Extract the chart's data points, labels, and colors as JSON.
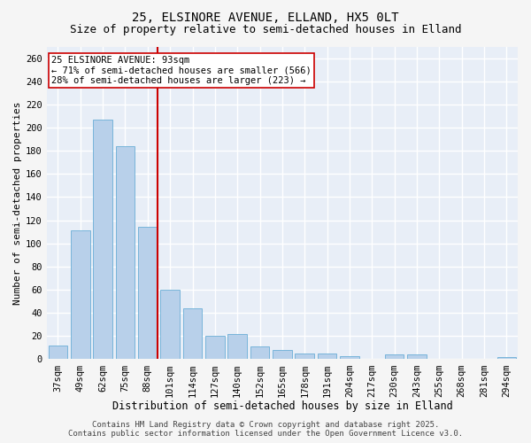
{
  "title1": "25, ELSINORE AVENUE, ELLAND, HX5 0LT",
  "title2": "Size of property relative to semi-detached houses in Elland",
  "xlabel": "Distribution of semi-detached houses by size in Elland",
  "ylabel": "Number of semi-detached properties",
  "categories": [
    "37sqm",
    "49sqm",
    "62sqm",
    "75sqm",
    "88sqm",
    "101sqm",
    "114sqm",
    "127sqm",
    "140sqm",
    "152sqm",
    "165sqm",
    "178sqm",
    "191sqm",
    "204sqm",
    "217sqm",
    "230sqm",
    "243sqm",
    "255sqm",
    "268sqm",
    "281sqm",
    "294sqm"
  ],
  "values": [
    12,
    111,
    207,
    184,
    114,
    60,
    44,
    20,
    22,
    11,
    8,
    5,
    5,
    3,
    0,
    4,
    4,
    0,
    0,
    0,
    2
  ],
  "bar_color": "#b8d0ea",
  "bar_edge_color": "#6aaed6",
  "property_bin_index": 4,
  "vline_color": "#cc0000",
  "annotation_text": "25 ELSINORE AVENUE: 93sqm\n← 71% of semi-detached houses are smaller (566)\n28% of semi-detached houses are larger (223) →",
  "annotation_box_color": "#ffffff",
  "annotation_box_edge": "#cc0000",
  "footer1": "Contains HM Land Registry data © Crown copyright and database right 2025.",
  "footer2": "Contains public sector information licensed under the Open Government Licence v3.0.",
  "ylim": [
    0,
    270
  ],
  "yticks": [
    0,
    20,
    40,
    60,
    80,
    100,
    120,
    140,
    160,
    180,
    200,
    220,
    240,
    260
  ],
  "bg_color": "#e8eef7",
  "grid_color": "#ffffff",
  "fig_bg_color": "#f5f5f5",
  "title1_fontsize": 10,
  "title2_fontsize": 9,
  "xlabel_fontsize": 8.5,
  "ylabel_fontsize": 8,
  "tick_fontsize": 7.5,
  "annotation_fontsize": 7.5,
  "footer_fontsize": 6.5
}
